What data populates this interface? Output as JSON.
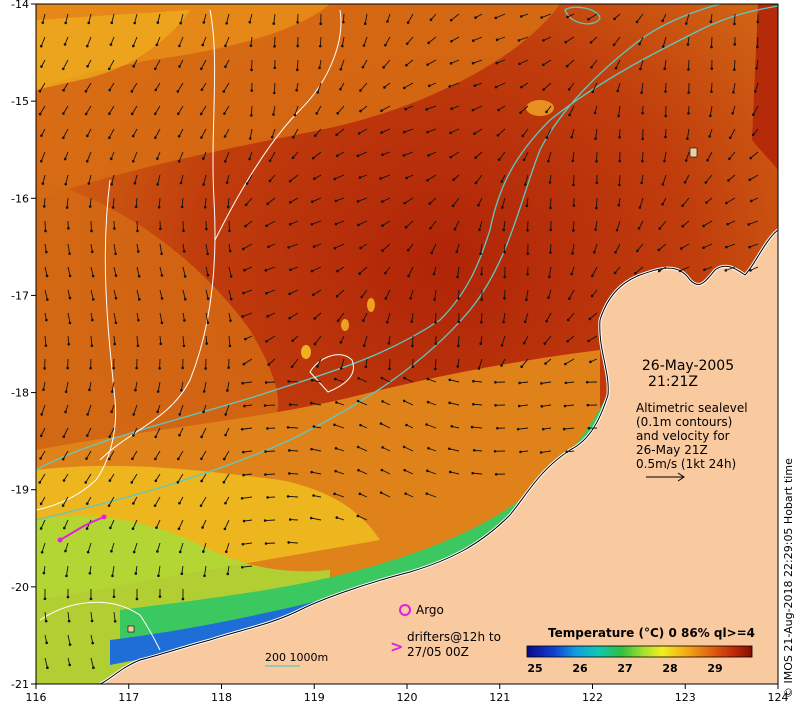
{
  "map": {
    "lon_ticks": [
      "116",
      "117",
      "118",
      "119",
      "120",
      "121",
      "122",
      "123",
      "124"
    ],
    "lat_ticks": [
      "-14",
      "-15",
      "-16",
      "-17",
      "-18",
      "-19",
      "-20",
      "-21"
    ],
    "date_text": "26-May-2005",
    "time_text": "21:21Z",
    "altimetry_note": [
      "Altimetric sealevel",
      "(0.1m contours)",
      "and velocity for",
      "26-May 21Z",
      "0.5m/s (1kt 24h)"
    ],
    "argo_label": "Argo",
    "drifters_label": [
      "drifters@12h to",
      "27/05 00Z"
    ],
    "drifter_symbol": ">",
    "isobath_label": "200  1000m",
    "colorbar_title": "Temperature (°C) 0 86% ql>=4",
    "colorbar_ticks": [
      "25",
      "26",
      "27",
      "28",
      "29"
    ],
    "credit": "© IMOS 21-Aug-2018 22:29:05 Hobart time",
    "colors": {
      "land": "#f9c9a0",
      "sea_warm": "#b52a08",
      "sea_mid": "#d66a12",
      "sea_cool": "#f0a020",
      "coastal_green": "#8fd23a",
      "coastal_blue": "#1f6ed8",
      "isobath_200": "#5fc8c0",
      "isobath_1000": "#ffffff",
      "argo": "#e020e0",
      "drifter": "#e020e0"
    }
  }
}
